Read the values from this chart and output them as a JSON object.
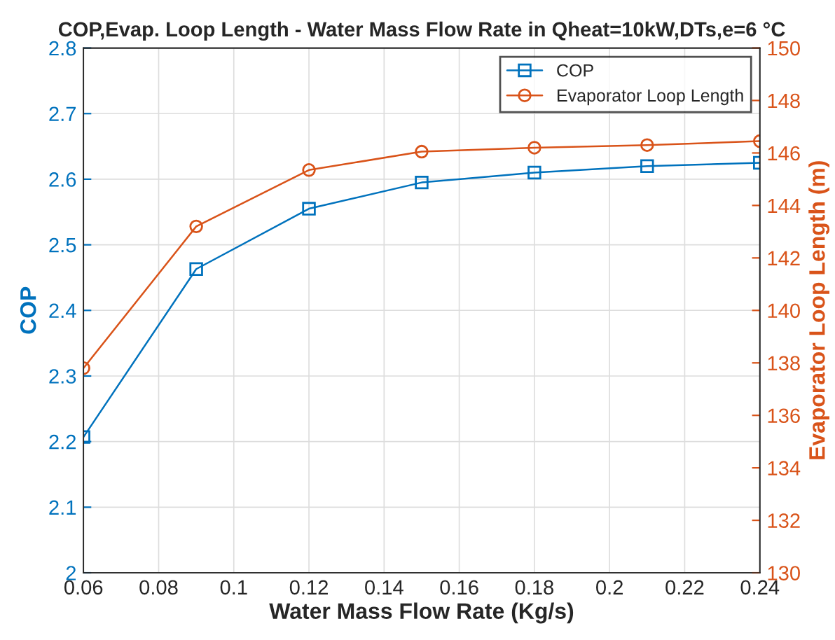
{
  "chart_data": {
    "type": "line",
    "title": "COP,Evap. Loop Length - Water Mass Flow Rate in Qheat=10kW,DTs,e=6 °C",
    "xlabel": "Water Mass Flow Rate (Kg/s)",
    "ylabel": "COP",
    "y2label": "Evaporator Loop Length (m)",
    "x": [
      0.06,
      0.09,
      0.12,
      0.15,
      0.18,
      0.21,
      0.24
    ],
    "series": [
      {
        "name": "COP",
        "color": "#0072bd",
        "marker": "square",
        "values": [
          2.207,
          2.463,
          2.555,
          2.595,
          2.61,
          2.62,
          2.625
        ]
      },
      {
        "name": "Evaporator Loop Length",
        "color": "#d95319",
        "marker": "circle",
        "axis": "y2",
        "values": [
          137.8,
          143.2,
          145.35,
          146.05,
          146.2,
          146.3,
          146.45
        ]
      }
    ],
    "xlim": [
      0.06,
      0.24
    ],
    "xticks": [
      0.06,
      0.08,
      0.1,
      0.12,
      0.14,
      0.16,
      0.18,
      0.2,
      0.22,
      0.24
    ],
    "ylim": [
      2,
      2.8
    ],
    "yticks": [
      2,
      2.1,
      2.2,
      2.3,
      2.4,
      2.5,
      2.6,
      2.7,
      2.8
    ],
    "y2lim": [
      130,
      150
    ],
    "y2ticks": [
      130,
      132,
      134,
      136,
      138,
      140,
      142,
      144,
      146,
      148,
      150
    ],
    "grid": true,
    "legend": "top right",
    "line_style": "solid"
  }
}
